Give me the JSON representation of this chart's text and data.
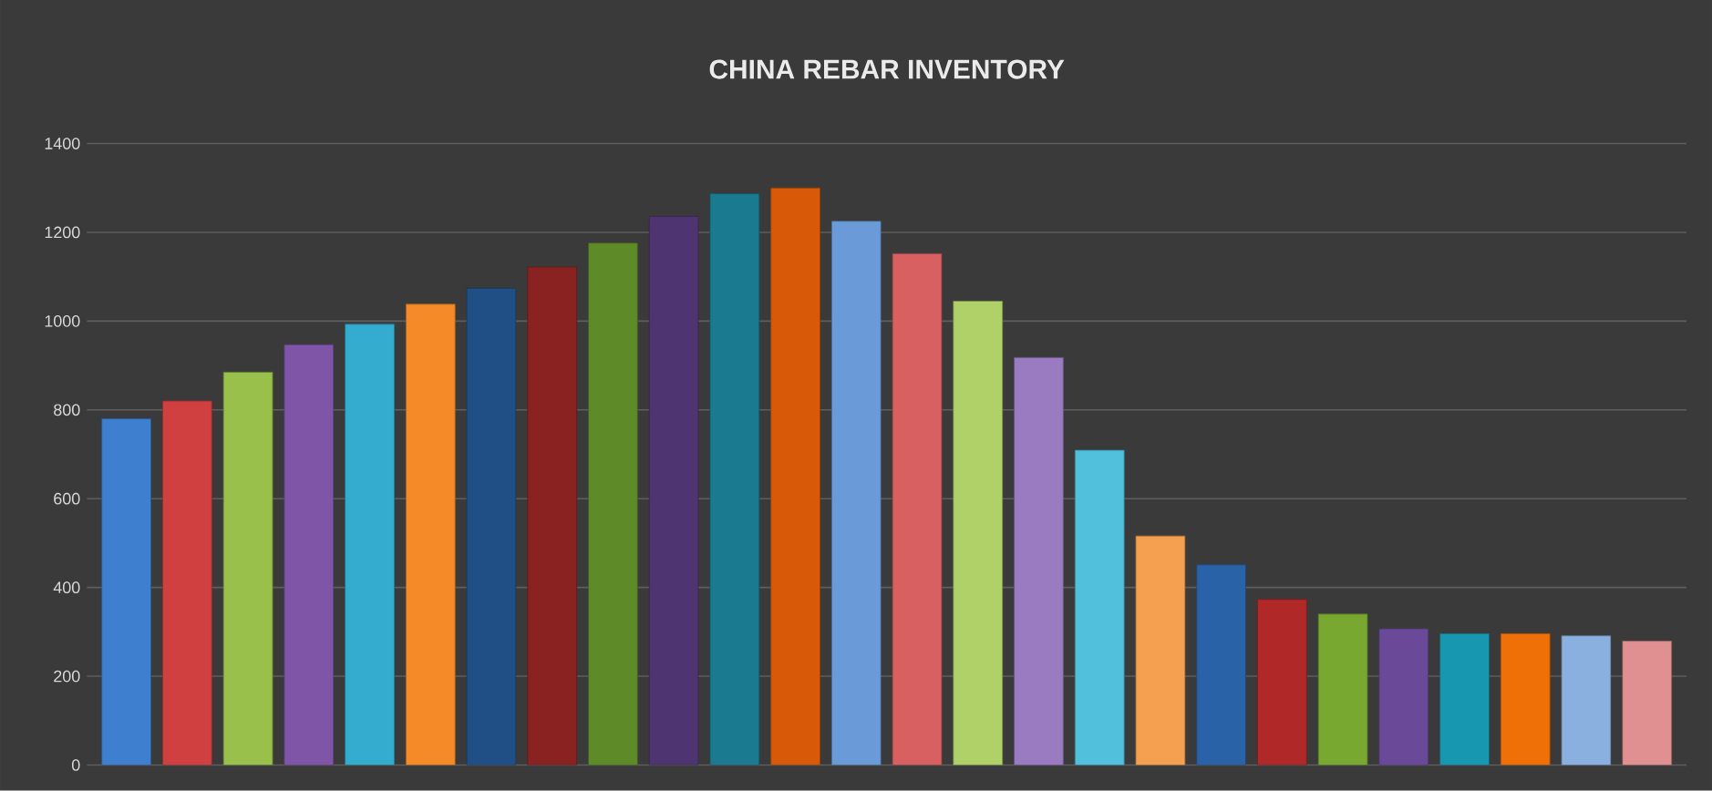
{
  "chart_data": {
    "type": "bar",
    "title": "CHINA REBAR INVENTORY",
    "categories": [
      null,
      null,
      null,
      null,
      null,
      null,
      null,
      null,
      null,
      null,
      null,
      null,
      null,
      null,
      null,
      null,
      null,
      null,
      null,
      null,
      null,
      null,
      null,
      null,
      null,
      null
    ],
    "values": [
      780,
      820,
      885,
      947,
      993,
      1038,
      1074,
      1122,
      1176,
      1236,
      1287,
      1300,
      1225,
      1152,
      1045,
      918,
      709,
      516,
      451,
      373,
      340,
      307,
      296,
      296,
      291,
      279
    ],
    "colors": [
      "#3f7fcf",
      "#d04040",
      "#98c04a",
      "#7f55a8",
      "#33acd0",
      "#f48a28",
      "#1f4f85",
      "#8a2222",
      "#5f8a28",
      "#4e3470",
      "#1a7a90",
      "#d85a08",
      "#6a9ad8",
      "#d86060",
      "#b0d068",
      "#9a7ac0",
      "#50c0dc",
      "#f5a050",
      "#2a62a8",
      "#b02828",
      "#78a830",
      "#6a4a98",
      "#1898b0",
      "#f07008",
      "#8ab0e0",
      "#e09090"
    ],
    "ylim": [
      0,
      1400
    ],
    "yticks": [
      0,
      200,
      400,
      600,
      800,
      1000,
      1200,
      1400
    ],
    "grid": "y",
    "tick_labels": "y"
  }
}
